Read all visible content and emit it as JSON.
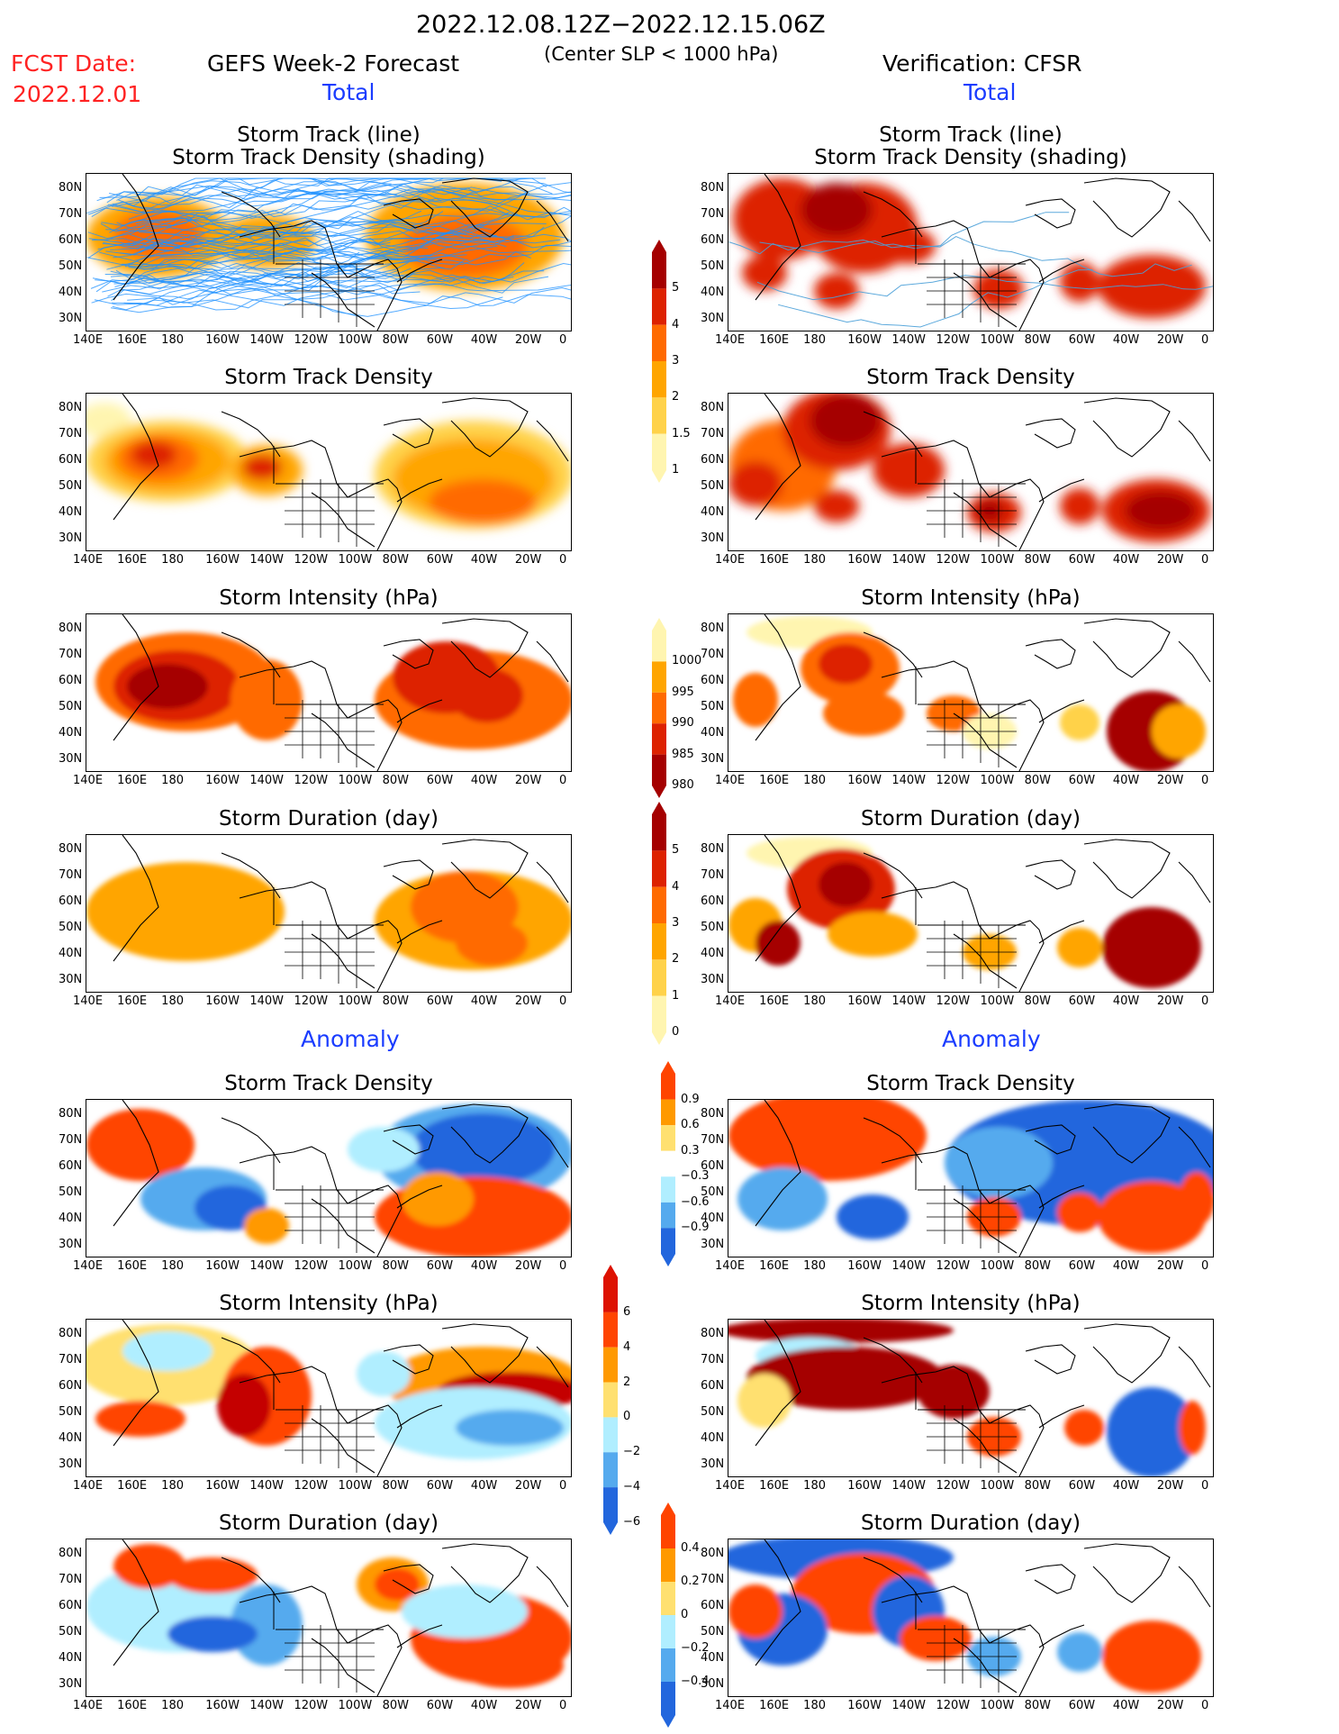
{
  "header": {
    "period": "2022.12.08.12Z−2022.12.15.06Z",
    "criterion": "(Center SLP < 1000 hPa)",
    "fcst_label": "FCST Date:",
    "fcst_date": "2022.12.01",
    "left_title": "GEFS Week-2 Forecast",
    "right_title": "Verification: CFSR",
    "total_label": "Total",
    "anomaly_label": "Anomaly"
  },
  "panel_titles": {
    "track_line": "Storm Track (line)",
    "track_shading": "Storm Track Density (shading)",
    "density": "Storm Track Density",
    "intensity": "Storm Intensity (hPa)",
    "duration": "Storm Duration (day)"
  },
  "axes": {
    "lat_labels": [
      "80N",
      "70N",
      "60N",
      "50N",
      "40N",
      "30N"
    ],
    "lon_labels": [
      "140E",
      "160E",
      "180",
      "160W",
      "140W",
      "120W",
      "100W",
      "80W",
      "60W",
      "40W",
      "20W",
      "0"
    ]
  },
  "colorbars": {
    "density_total": {
      "labels": [
        "5",
        "4",
        "3",
        "2",
        "1.5",
        "1"
      ],
      "colors": [
        "#a50000",
        "#dd2200",
        "#ff6a00",
        "#ffa500",
        "#ffd24a",
        "#fff5b0"
      ]
    },
    "intensity_total": {
      "labels": [
        "1000",
        "995",
        "990",
        "985",
        "980"
      ],
      "colors": [
        "#fff5b0",
        "#ffa500",
        "#ff6a00",
        "#dd2200",
        "#a50000"
      ]
    },
    "duration_total": {
      "labels": [
        "5",
        "4",
        "3",
        "2",
        "1",
        "0"
      ],
      "colors": [
        "#a50000",
        "#dd2200",
        "#ff6a00",
        "#ffa500",
        "#ffd24a",
        "#fff5b0"
      ]
    },
    "density_anom": {
      "labels": [
        "0.9",
        "0.6",
        "0.3",
        "−0.3",
        "−0.6",
        "−0.9"
      ],
      "colors": [
        "#ff4400",
        "#ff9900",
        "#ffe070",
        "#ffffff",
        "#b0eeff",
        "#55aaee",
        "#2266dd"
      ]
    },
    "intensity_anom": {
      "labels": [
        "6",
        "4",
        "2",
        "0",
        "−2",
        "−4",
        "−6"
      ],
      "colors": [
        "#dd1100",
        "#ff4400",
        "#ff9900",
        "#ffe070",
        "#b0eeff",
        "#55aaee",
        "#2266dd"
      ]
    },
    "duration_anom": {
      "labels": [
        "0.4",
        "0.2",
        "0",
        "−0.2",
        "−0.4"
      ],
      "colors": [
        "#ff4400",
        "#ff9900",
        "#ffe070",
        "#b0eeff",
        "#55aaee",
        "#2266dd"
      ]
    }
  }
}
